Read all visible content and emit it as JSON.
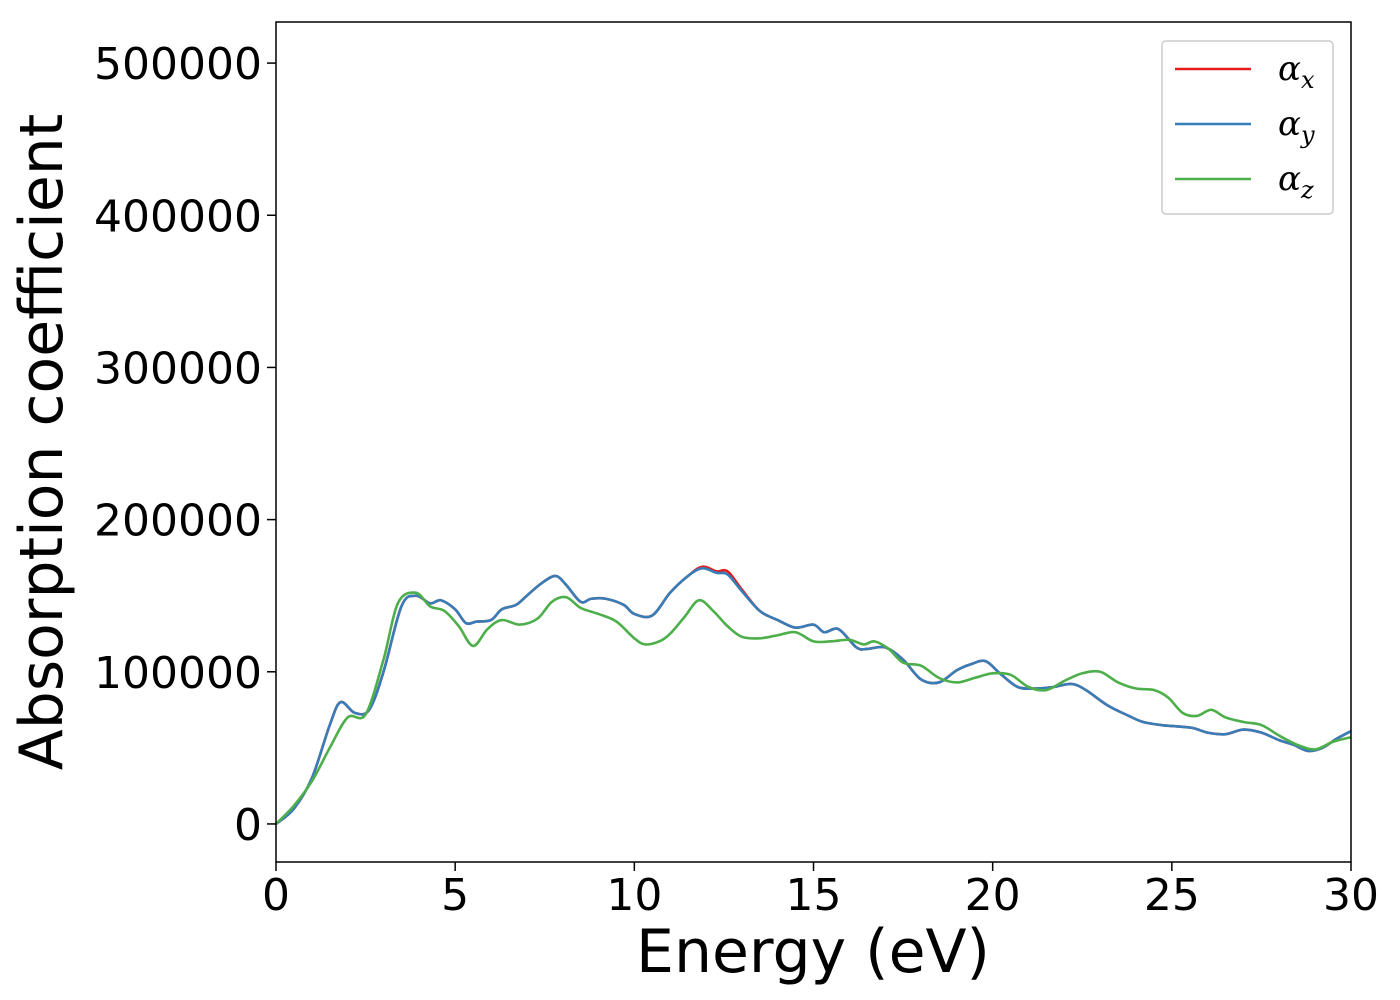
{
  "chart_data": {
    "type": "line",
    "title": "",
    "xlabel": "Energy (eV)",
    "ylabel": "Absorption coefficient",
    "xlim": [
      0,
      30
    ],
    "ylim": [
      -25000,
      527000
    ],
    "xticks": [
      0,
      5,
      10,
      15,
      20,
      25,
      30
    ],
    "yticks": [
      0,
      100000,
      200000,
      300000,
      400000,
      500000
    ],
    "grid": false,
    "legend": {
      "position": "top-right"
    },
    "series": [
      {
        "name": "αx",
        "legend_base": "α",
        "legend_sub": "x",
        "color": "#e41a1c",
        "x": [
          0,
          0.5,
          1,
          1.5,
          1.8,
          2.2,
          2.6,
          3,
          3.5,
          3.9,
          4.3,
          4.6,
          5,
          5.3,
          5.6,
          6,
          6.3,
          6.7,
          7,
          7.4,
          7.8,
          8.1,
          8.5,
          8.8,
          9.2,
          9.7,
          10,
          10.5,
          11,
          11.5,
          11.9,
          12.3,
          12.6,
          13,
          13.5,
          14,
          14.5,
          15,
          15.3,
          15.7,
          16.2,
          16.5,
          17,
          17.5,
          18,
          18.5,
          19,
          19.4,
          19.8,
          20.2,
          20.7,
          21.2,
          21.7,
          22.2,
          22.6,
          23.2,
          23.8,
          24.2,
          24.7,
          25.2,
          25.6,
          26,
          26.5,
          27,
          27.5,
          28,
          28.4,
          28.8,
          29.2,
          29.6,
          30
        ],
        "y": [
          0,
          10000,
          30000,
          65000,
          80000,
          73000,
          75000,
          100000,
          143000,
          150000,
          145000,
          147000,
          141000,
          132000,
          133000,
          134000,
          141000,
          144000,
          150000,
          158000,
          163000,
          157000,
          146000,
          148000,
          148000,
          144000,
          138000,
          137000,
          152000,
          163000,
          169000,
          166000,
          166000,
          154000,
          140000,
          134000,
          129000,
          131000,
          126000,
          128000,
          116000,
          115000,
          116000,
          108000,
          95000,
          93000,
          101000,
          105000,
          107000,
          99000,
          90000,
          89000,
          90000,
          92000,
          88000,
          78000,
          71000,
          67000,
          65000,
          64000,
          63000,
          60000,
          59000,
          62000,
          60000,
          55000,
          52000,
          48000,
          50000,
          56000,
          61000
        ]
      },
      {
        "name": "αy",
        "legend_base": "α",
        "legend_sub": "y",
        "color": "#377eb8",
        "x": [
          0,
          0.5,
          1,
          1.5,
          1.8,
          2.2,
          2.6,
          3,
          3.5,
          3.9,
          4.3,
          4.6,
          5,
          5.3,
          5.6,
          6,
          6.3,
          6.7,
          7,
          7.4,
          7.8,
          8.1,
          8.5,
          8.8,
          9.2,
          9.7,
          10,
          10.5,
          11,
          11.5,
          11.9,
          12.3,
          12.6,
          13,
          13.5,
          14,
          14.5,
          15,
          15.3,
          15.7,
          16.2,
          16.5,
          17,
          17.5,
          18,
          18.5,
          19,
          19.4,
          19.8,
          20.2,
          20.7,
          21.2,
          21.7,
          22.2,
          22.6,
          23.2,
          23.8,
          24.2,
          24.7,
          25.2,
          25.6,
          26,
          26.5,
          27,
          27.5,
          28,
          28.4,
          28.8,
          29.2,
          29.6,
          30
        ],
        "y": [
          0,
          10000,
          30000,
          65000,
          80000,
          73000,
          75000,
          100000,
          143000,
          150000,
          145000,
          147000,
          141000,
          132000,
          133000,
          134000,
          141000,
          144000,
          150000,
          158000,
          163000,
          157000,
          146000,
          148000,
          148000,
          144000,
          138000,
          137000,
          152000,
          163000,
          168000,
          165000,
          164000,
          153000,
          140000,
          134000,
          129000,
          131000,
          126000,
          128000,
          116000,
          115000,
          116000,
          108000,
          95000,
          93000,
          101000,
          105000,
          107000,
          99000,
          90000,
          89000,
          90000,
          92000,
          88000,
          78000,
          71000,
          67000,
          65000,
          64000,
          63000,
          60000,
          59000,
          62000,
          60000,
          55000,
          52000,
          48000,
          50000,
          56000,
          61000
        ]
      },
      {
        "name": "αz",
        "legend_base": "α",
        "legend_sub": "z",
        "color": "#4daf4a",
        "x": [
          0,
          0.5,
          1,
          1.5,
          2,
          2.5,
          3,
          3.4,
          3.9,
          4.3,
          4.7,
          5.1,
          5.5,
          5.9,
          6.3,
          6.8,
          7.3,
          7.7,
          8.1,
          8.5,
          9,
          9.5,
          10,
          10.3,
          10.7,
          11,
          11.4,
          11.8,
          12.2,
          12.6,
          13,
          13.5,
          14,
          14.5,
          15,
          15.5,
          16,
          16.4,
          16.7,
          17.1,
          17.5,
          18,
          18.5,
          19,
          19.5,
          20,
          20.5,
          21,
          21.5,
          22,
          22.5,
          23,
          23.5,
          24,
          24.5,
          24.9,
          25.3,
          25.7,
          26.1,
          26.5,
          27,
          27.5,
          28,
          28.5,
          29,
          29.5,
          30
        ],
        "y": [
          0,
          12000,
          28000,
          50000,
          70000,
          72000,
          108000,
          145000,
          152000,
          143000,
          140000,
          130000,
          117000,
          128000,
          134000,
          131000,
          135000,
          146000,
          149000,
          142000,
          138000,
          133000,
          122000,
          118000,
          120000,
          125000,
          136000,
          147000,
          140000,
          130000,
          123000,
          122000,
          124000,
          126000,
          120000,
          120000,
          121000,
          118000,
          120000,
          115000,
          106000,
          104000,
          96000,
          93000,
          96000,
          99000,
          98000,
          90000,
          88000,
          94000,
          99000,
          100000,
          93000,
          89000,
          88000,
          83000,
          73000,
          71000,
          75000,
          70000,
          67000,
          65000,
          58000,
          52000,
          49000,
          54000,
          57000
        ]
      }
    ]
  }
}
